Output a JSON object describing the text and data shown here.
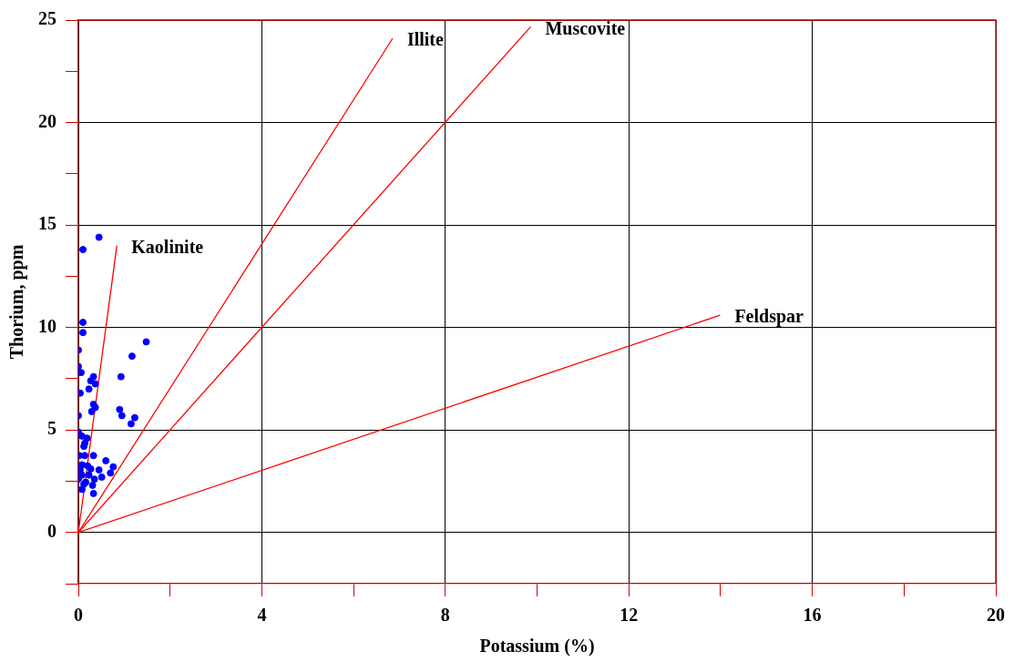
{
  "chart_data": {
    "type": "scatter",
    "xlabel": "Potassium (%)",
    "ylabel": "Thorium, ppm",
    "xlim": [
      0,
      20
    ],
    "ylim": [
      -2.5,
      25
    ],
    "xticks": [
      0,
      {
        "value": 2,
        "label": null
      },
      4,
      {
        "value": 6,
        "label": null
      },
      8,
      {
        "value": 10,
        "label": null
      },
      12,
      {
        "value": 14,
        "label": null
      },
      16,
      {
        "value": 18,
        "label": null
      },
      20
    ],
    "yticks": [
      {
        "value": -2.5,
        "label": null
      },
      0,
      {
        "value": 2.5,
        "label": null
      },
      5,
      {
        "value": 7.5,
        "label": null
      },
      10,
      {
        "value": 12.5,
        "label": null
      },
      15,
      {
        "value": 17.5,
        "label": null
      },
      20,
      {
        "value": 22.5,
        "label": null
      },
      25
    ],
    "grid": true,
    "legend": false,
    "series": [
      {
        "marker": "circle",
        "color": "#0000ff",
        "x": [
          0.45,
          0.1,
          0.1,
          0.1,
          1.48,
          1.17,
          0,
          0,
          0.06,
          0.93,
          0.33,
          0.27,
          0.37,
          0.23,
          0.04,
          0.33,
          0.37,
          0.29,
          0.9,
          0.95,
          1.23,
          1.15,
          0,
          0,
          0.08,
          0.19,
          0.14,
          0.12,
          0.02,
          0.14,
          0.33,
          0.6,
          0.08,
          0.76,
          0.27,
          0.45,
          0.04,
          0.08,
          0.7,
          0.35,
          0,
          0.16,
          0.31,
          0.08,
          0.33,
          0.51,
          0.23,
          0.12,
          0.2
        ],
        "values": [
          14.4,
          13.8,
          10.25,
          9.75,
          9.3,
          8.6,
          8.9,
          8.1,
          7.8,
          7.6,
          7.6,
          7.4,
          7.25,
          7.0,
          6.8,
          6.25,
          6.1,
          5.9,
          6.0,
          5.7,
          5.6,
          5.3,
          5.7,
          4.9,
          4.7,
          4.6,
          4.35,
          4.2,
          3.75,
          3.75,
          3.75,
          3.5,
          3.3,
          3.2,
          3.1,
          3.05,
          3.05,
          2.8,
          2.9,
          2.6,
          2.6,
          2.45,
          2.3,
          2.1,
          1.9,
          2.7,
          2.8,
          2.35,
          3.25
        ]
      },
      {
        "type": "line",
        "marker": "none",
        "name": "Kaolinite",
        "color": "#ff0000",
        "x": [
          0,
          0.84
        ],
        "values": [
          0,
          14.0
        ]
      },
      {
        "type": "line",
        "marker": "none",
        "name": "Illite",
        "color": "#ff0000",
        "x": [
          0,
          6.85
        ],
        "values": [
          0,
          24.1
        ]
      },
      {
        "type": "line",
        "marker": "none",
        "name": "Muscovite",
        "color": "#ff0000",
        "x": [
          0,
          9.86
        ],
        "values": [
          0,
          24.67
        ]
      },
      {
        "type": "line",
        "marker": "none",
        "name": "Feldspar",
        "color": "#ff0000",
        "x": [
          0,
          13.99
        ],
        "values": [
          0,
          10.6
        ]
      }
    ]
  }
}
